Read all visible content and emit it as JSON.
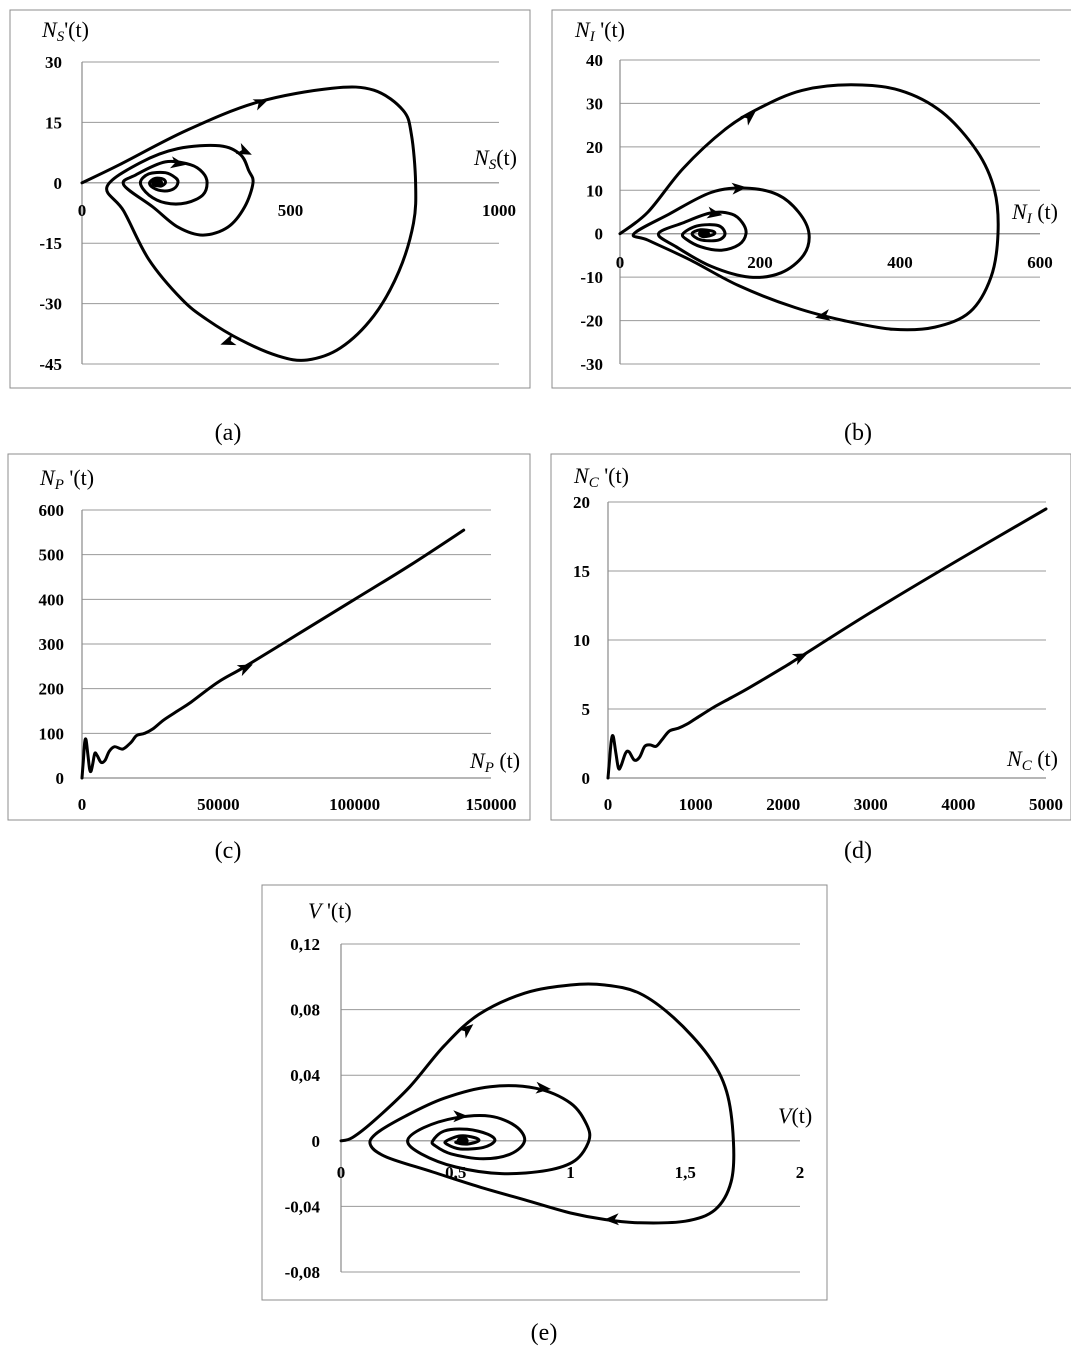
{
  "chart_data": [
    {
      "id": "a",
      "type": "scatter",
      "caption": "(a)",
      "xlabel": {
        "main": "N",
        "sub": "S",
        "tail": "(t)"
      },
      "ylabel": {
        "main": "N",
        "sub": "S",
        "tail": "'(t)"
      },
      "xlim": [
        0,
        1000
      ],
      "ylim": [
        -45,
        30
      ],
      "xticks": [
        0,
        500,
        1000
      ],
      "yticks": [
        30,
        15,
        0,
        -15,
        -30,
        -45
      ],
      "xtick_labels": [
        "0",
        "500",
        "1000"
      ],
      "ytick_labels": [
        "30",
        "15",
        "0",
        "-15",
        "-30",
        "-45"
      ],
      "grid": "horizontal",
      "points": [
        [
          0,
          0
        ],
        [
          90,
          4.5
        ],
        [
          250,
          13
        ],
        [
          420,
          20
        ],
        [
          600,
          23.5
        ],
        [
          700,
          23
        ],
        [
          770,
          18
        ],
        [
          790,
          12
        ],
        [
          800,
          0
        ],
        [
          795,
          -10
        ],
        [
          760,
          -22
        ],
        [
          700,
          -33
        ],
        [
          620,
          -41
        ],
        [
          540,
          -44
        ],
        [
          470,
          -43
        ],
        [
          380,
          -39
        ],
        [
          300,
          -34
        ],
        [
          240,
          -29
        ],
        [
          160,
          -19
        ],
        [
          100,
          -7
        ],
        [
          60,
          -1
        ],
        [
          140,
          5
        ],
        [
          230,
          8.5
        ],
        [
          330,
          9.2
        ],
        [
          380,
          7
        ],
        [
          400,
          3
        ],
        [
          410,
          0
        ],
        [
          390,
          -6
        ],
        [
          350,
          -11
        ],
        [
          290,
          -13
        ],
        [
          230,
          -11
        ],
        [
          170,
          -6
        ],
        [
          100,
          -0.5
        ],
        [
          130,
          2
        ],
        [
          200,
          5.2
        ],
        [
          260,
          4.5
        ],
        [
          290,
          2.5
        ],
        [
          300,
          0
        ],
        [
          290,
          -3
        ],
        [
          250,
          -5
        ],
        [
          200,
          -5
        ],
        [
          160,
          -3
        ],
        [
          140,
          0
        ],
        [
          160,
          2.2
        ],
        [
          200,
          2.5
        ],
        [
          225,
          1.2
        ],
        [
          230,
          0
        ],
        [
          220,
          -1.5
        ],
        [
          195,
          -2
        ],
        [
          170,
          -1.2
        ],
        [
          162,
          0
        ],
        [
          175,
          1.1
        ],
        [
          195,
          0.9
        ],
        [
          200,
          0
        ],
        [
          190,
          -0.8
        ],
        [
          178,
          -0.5
        ],
        [
          180,
          0
        ]
      ],
      "arrows": [
        {
          "at": [
            430,
            20
          ],
          "angle_deg": -22
        },
        {
          "at": [
            390,
            7.8
          ],
          "angle_deg": 25
        },
        {
          "at": [
            230,
            4.8
          ],
          "angle_deg": 10
        },
        {
          "at": [
            350,
            -39.5
          ],
          "angle_deg": 160
        }
      ],
      "spiral_center": [
        180,
        0
      ]
    },
    {
      "id": "b",
      "type": "scatter",
      "caption": "(b)",
      "xlabel": {
        "main": "N",
        "sub": "I",
        "tail": " (t)"
      },
      "ylabel": {
        "main": "N",
        "sub": "I",
        "tail": " '(t)"
      },
      "xlim": [
        0,
        600
      ],
      "ylim": [
        -30,
        40
      ],
      "xticks": [
        0,
        200,
        400,
        600
      ],
      "yticks": [
        40,
        30,
        20,
        10,
        0,
        -10,
        -20,
        -30
      ],
      "xtick_labels": [
        "0",
        "200",
        "400",
        "600"
      ],
      "ytick_labels": [
        "40",
        "30",
        "20",
        "10",
        "0",
        "-10",
        "-20",
        "-30"
      ],
      "grid": "horizontal",
      "points": [
        [
          0,
          0
        ],
        [
          40,
          5
        ],
        [
          90,
          15
        ],
        [
          150,
          24
        ],
        [
          200,
          29
        ],
        [
          260,
          33
        ],
        [
          330,
          34.3
        ],
        [
          400,
          33
        ],
        [
          460,
          28
        ],
        [
          510,
          19
        ],
        [
          535,
          10
        ],
        [
          540,
          0
        ],
        [
          530,
          -10
        ],
        [
          500,
          -18
        ],
        [
          450,
          -21.5
        ],
        [
          390,
          -22
        ],
        [
          320,
          -20
        ],
        [
          250,
          -17
        ],
        [
          170,
          -12
        ],
        [
          100,
          -6
        ],
        [
          40,
          -1.5
        ],
        [
          20,
          0
        ],
        [
          70,
          4.5
        ],
        [
          130,
          9.5
        ],
        [
          180,
          10.5
        ],
        [
          225,
          9
        ],
        [
          255,
          5
        ],
        [
          270,
          0
        ],
        [
          262,
          -5
        ],
        [
          230,
          -9
        ],
        [
          185,
          -10
        ],
        [
          130,
          -7.5
        ],
        [
          80,
          -3
        ],
        [
          55,
          0
        ],
        [
          90,
          2.5
        ],
        [
          130,
          4.8
        ],
        [
          160,
          4.5
        ],
        [
          175,
          2.5
        ],
        [
          180,
          0
        ],
        [
          170,
          -2.5
        ],
        [
          145,
          -3.8
        ],
        [
          115,
          -3
        ],
        [
          95,
          -1.3
        ],
        [
          90,
          0
        ],
        [
          110,
          1.8
        ],
        [
          140,
          1.9
        ],
        [
          150,
          0
        ],
        [
          140,
          -1.5
        ],
        [
          115,
          -1.4
        ],
        [
          103,
          0
        ],
        [
          115,
          0.9
        ],
        [
          132,
          0.6
        ],
        [
          135,
          0
        ],
        [
          125,
          -0.6
        ],
        [
          115,
          -0.3
        ],
        [
          120,
          0
        ]
      ],
      "arrows": [
        {
          "at": [
            185,
            27
          ],
          "angle_deg": -40
        },
        {
          "at": [
            170,
            10.5
          ],
          "angle_deg": -5
        },
        {
          "at": [
            135,
            4.6
          ],
          "angle_deg": 10
        },
        {
          "at": [
            290,
            -19
          ],
          "angle_deg": 170
        }
      ],
      "spiral_center": [
        120,
        0
      ]
    },
    {
      "id": "c",
      "type": "line",
      "caption": "(c)",
      "xlabel": {
        "main": "N",
        "sub": "P",
        "tail": " (t)"
      },
      "ylabel": {
        "main": "N",
        "sub": "P",
        "tail": " '(t)"
      },
      "xlim": [
        0,
        150000
      ],
      "ylim": [
        0,
        600
      ],
      "xticks": [
        0,
        50000,
        100000,
        150000
      ],
      "yticks": [
        600,
        500,
        400,
        300,
        200,
        100,
        0
      ],
      "xtick_labels": [
        "0",
        "50000",
        "100000",
        "150000"
      ],
      "ytick_labels": [
        "600",
        "500",
        "400",
        "300",
        "200",
        "100",
        "0"
      ],
      "grid": "horizontal",
      "points": [
        [
          0,
          0
        ],
        [
          500,
          40
        ],
        [
          1000,
          80
        ],
        [
          1500,
          85
        ],
        [
          2200,
          50
        ],
        [
          2800,
          20
        ],
        [
          3300,
          15
        ],
        [
          3900,
          30
        ],
        [
          4700,
          55
        ],
        [
          5600,
          50
        ],
        [
          7000,
          35
        ],
        [
          8500,
          40
        ],
        [
          10000,
          60
        ],
        [
          12000,
          70
        ],
        [
          15000,
          65
        ],
        [
          18000,
          80
        ],
        [
          20000,
          95
        ],
        [
          23000,
          100
        ],
        [
          26000,
          110
        ],
        [
          30000,
          130
        ],
        [
          35000,
          150
        ],
        [
          40000,
          170
        ],
        [
          50000,
          215
        ],
        [
          60000,
          250
        ],
        [
          80000,
          325
        ],
        [
          100000,
          400
        ],
        [
          120000,
          475
        ],
        [
          140000,
          555
        ]
      ],
      "arrows": [
        {
          "at": [
            60000,
            247
          ],
          "angle_deg": -25
        }
      ]
    },
    {
      "id": "d",
      "type": "line",
      "caption": "(d)",
      "xlabel": {
        "main": "N",
        "sub": "C",
        "tail": " (t)"
      },
      "ylabel": {
        "main": "N",
        "sub": "C",
        "tail": " '(t)"
      },
      "xlim": [
        0,
        5000
      ],
      "ylim": [
        0,
        20
      ],
      "xticks": [
        0,
        1000,
        2000,
        3000,
        4000,
        5000
      ],
      "yticks": [
        20,
        15,
        10,
        5,
        0
      ],
      "xtick_labels": [
        "0",
        "1000",
        "2000",
        "3000",
        "4000",
        "5000"
      ],
      "ytick_labels": [
        "20",
        "15",
        "10",
        "5",
        "0"
      ],
      "grid": "horizontal",
      "points": [
        [
          0,
          0
        ],
        [
          20,
          1.5
        ],
        [
          40,
          2.8
        ],
        [
          60,
          3
        ],
        [
          90,
          1.8
        ],
        [
          120,
          0.7
        ],
        [
          150,
          0.9
        ],
        [
          200,
          1.8
        ],
        [
          240,
          1.9
        ],
        [
          300,
          1.3
        ],
        [
          360,
          1.5
        ],
        [
          420,
          2.3
        ],
        [
          480,
          2.4
        ],
        [
          550,
          2.3
        ],
        [
          620,
          2.8
        ],
        [
          700,
          3.4
        ],
        [
          800,
          3.6
        ],
        [
          900,
          3.9
        ],
        [
          1000,
          4.3
        ],
        [
          1200,
          5.1
        ],
        [
          1400,
          5.8
        ],
        [
          1600,
          6.5
        ],
        [
          2000,
          8.0
        ],
        [
          2200,
          8.8
        ],
        [
          3000,
          12.0
        ],
        [
          4000,
          15.8
        ],
        [
          5000,
          19.5
        ]
      ],
      "arrows": [
        {
          "at": [
            2200,
            8.8
          ],
          "angle_deg": -25
        }
      ]
    },
    {
      "id": "e",
      "type": "scatter",
      "caption": "(e)",
      "xlabel": {
        "main": "V",
        "sub": "",
        "tail": "(t)"
      },
      "ylabel": {
        "main": "V",
        "sub": "",
        "tail": " '(t)"
      },
      "xlim": [
        0,
        2
      ],
      "ylim": [
        -0.08,
        0.12
      ],
      "xticks": [
        0,
        0.5,
        1,
        1.5,
        2
      ],
      "yticks": [
        0.12,
        0.08,
        0.04,
        0,
        -0.04,
        -0.08
      ],
      "xtick_labels": [
        "0",
        "0,5",
        "1",
        "1,5",
        "2"
      ],
      "ytick_labels": [
        "0,12",
        "0,08",
        "0,04",
        "0",
        "-0,04",
        "-0,08"
      ],
      "grid": "horizontal",
      "points": [
        [
          0,
          0
        ],
        [
          0.05,
          0.002
        ],
        [
          0.15,
          0.013
        ],
        [
          0.3,
          0.033
        ],
        [
          0.45,
          0.058
        ],
        [
          0.6,
          0.077
        ],
        [
          0.8,
          0.09
        ],
        [
          1.0,
          0.095
        ],
        [
          1.15,
          0.095
        ],
        [
          1.3,
          0.09
        ],
        [
          1.45,
          0.075
        ],
        [
          1.6,
          0.052
        ],
        [
          1.68,
          0.03
        ],
        [
          1.71,
          0
        ],
        [
          1.7,
          -0.025
        ],
        [
          1.63,
          -0.042
        ],
        [
          1.5,
          -0.049
        ],
        [
          1.3,
          -0.05
        ],
        [
          1.15,
          -0.048
        ],
        [
          1.0,
          -0.044
        ],
        [
          0.8,
          -0.036
        ],
        [
          0.6,
          -0.028
        ],
        [
          0.4,
          -0.019
        ],
        [
          0.2,
          -0.01
        ],
        [
          0.13,
          -0.003
        ],
        [
          0.15,
          0.004
        ],
        [
          0.28,
          0.015
        ],
        [
          0.45,
          0.026
        ],
        [
          0.65,
          0.033
        ],
        [
          0.85,
          0.032
        ],
        [
          1.0,
          0.023
        ],
        [
          1.07,
          0.01
        ],
        [
          1.08,
          0
        ],
        [
          1.02,
          -0.012
        ],
        [
          0.9,
          -0.018
        ],
        [
          0.7,
          -0.02
        ],
        [
          0.5,
          -0.016
        ],
        [
          0.35,
          -0.008
        ],
        [
          0.29,
          0
        ],
        [
          0.36,
          0.008
        ],
        [
          0.5,
          0.014
        ],
        [
          0.65,
          0.015
        ],
        [
          0.76,
          0.009
        ],
        [
          0.8,
          0
        ],
        [
          0.74,
          -0.008
        ],
        [
          0.62,
          -0.011
        ],
        [
          0.48,
          -0.008
        ],
        [
          0.41,
          -0.003
        ],
        [
          0.4,
          0
        ],
        [
          0.45,
          0.006
        ],
        [
          0.55,
          0.007
        ],
        [
          0.64,
          0.004
        ],
        [
          0.67,
          0
        ],
        [
          0.62,
          -0.004
        ],
        [
          0.52,
          -0.005
        ],
        [
          0.46,
          -0.002
        ],
        [
          0.46,
          0
        ],
        [
          0.52,
          0.003
        ],
        [
          0.58,
          0.002
        ],
        [
          0.6,
          0
        ],
        [
          0.55,
          -0.002
        ],
        [
          0.5,
          -0.001
        ],
        [
          0.53,
          0
        ]
      ],
      "arrows": [
        {
          "at": [
            0.55,
            0.068
          ],
          "angle_deg": -40
        },
        {
          "at": [
            0.88,
            0.032
          ],
          "angle_deg": 5
        },
        {
          "at": [
            0.52,
            0.015
          ],
          "angle_deg": 0
        },
        {
          "at": [
            1.18,
            -0.048
          ],
          "angle_deg": 178
        }
      ],
      "spiral_center": [
        0.53,
        0
      ]
    }
  ]
}
